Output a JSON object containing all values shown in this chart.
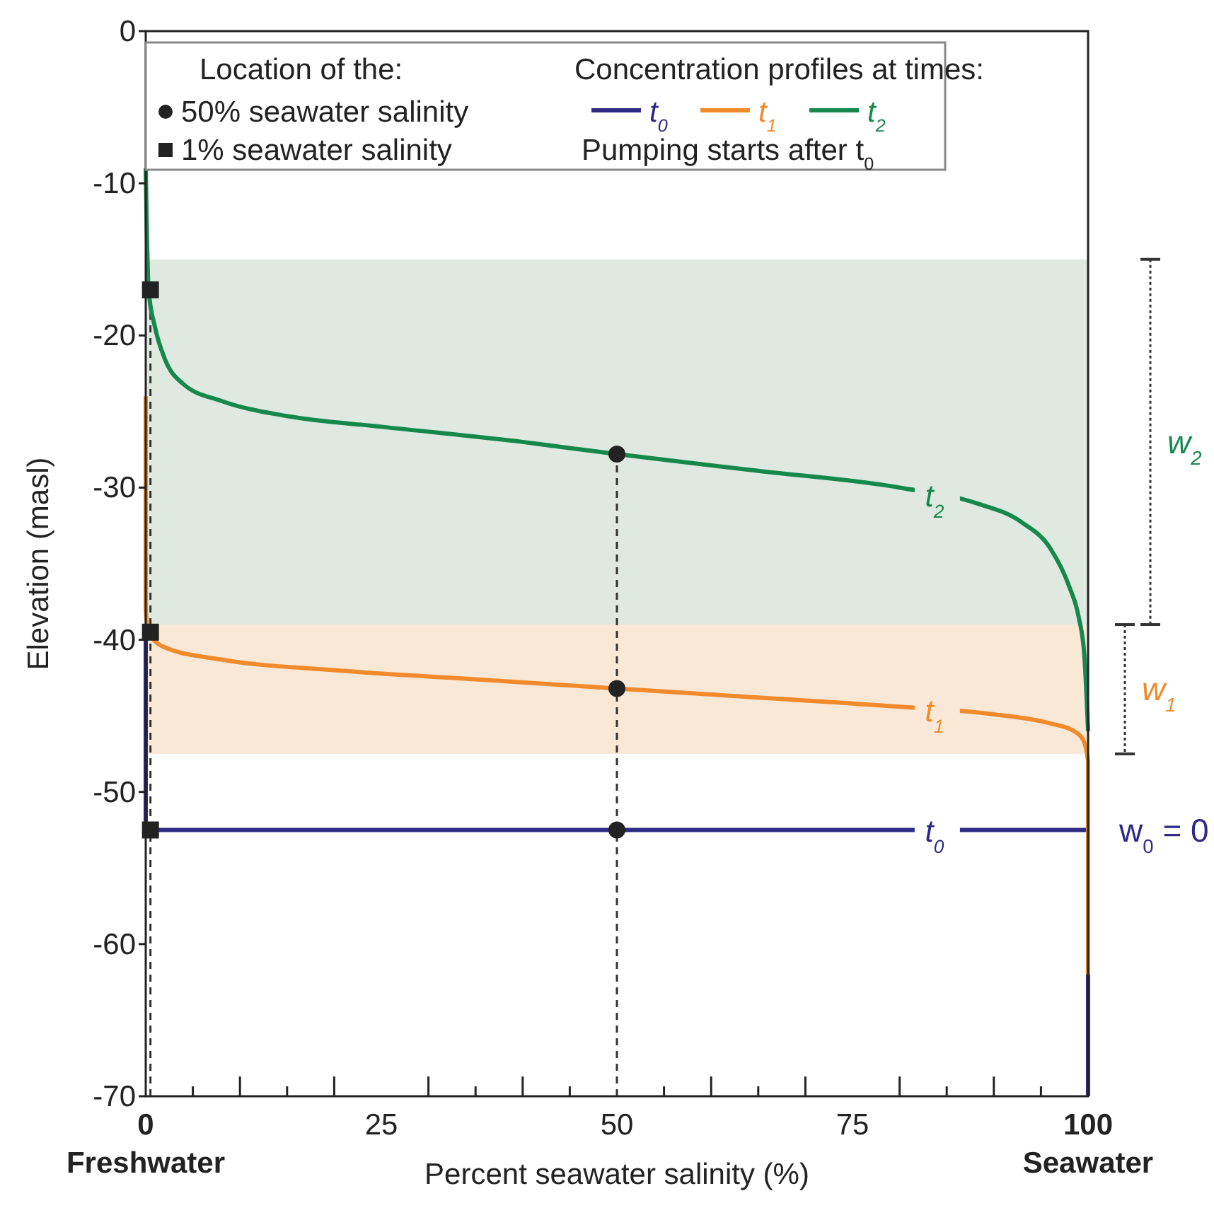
{
  "chart_data": {
    "type": "line",
    "xlabel": "Percent seawater salinity (%)",
    "ylabel": "Elevation (masl)",
    "xlim": [
      0,
      100
    ],
    "ylim": [
      -70,
      0
    ],
    "xticks": [
      0,
      {
        "value": 5,
        "label": null
      },
      {
        "value": 10,
        "label": null
      },
      {
        "value": 15,
        "label": null
      },
      {
        "value": 20,
        "label": null
      },
      25,
      {
        "value": 30,
        "label": null
      },
      {
        "value": 35,
        "label": null
      },
      {
        "value": 40,
        "label": null
      },
      {
        "value": 45,
        "label": null
      },
      50,
      {
        "value": 55,
        "label": null
      },
      {
        "value": 60,
        "label": null
      },
      {
        "value": 65,
        "label": null
      },
      {
        "value": 70,
        "label": null
      },
      75,
      {
        "value": 80,
        "label": null
      },
      {
        "value": 85,
        "label": null
      },
      {
        "value": 90,
        "label": null
      },
      {
        "value": 95,
        "label": null
      },
      100
    ],
    "yticks": [
      0,
      -10,
      -20,
      -30,
      -40,
      -50,
      -60,
      -70
    ],
    "grid": false,
    "legend": "top",
    "legend_title": "Location of the:",
    "marker": "none",
    "line_style": "solid",
    "series": [
      {
        "name": "t$_{0}$",
        "color": "#2e2a86",
        "x": [
          0,
          0,
          100,
          100
        ],
        "values": [
          -40,
          -52.5,
          -52.5,
          -70
        ]
      },
      {
        "name": "t$_{1}$",
        "color": "#f08a2a",
        "x": [
          0,
          0,
          0.3,
          2,
          8,
          20,
          35,
          50,
          65,
          80,
          90,
          96,
          98.5,
          99.5,
          100,
          100
        ],
        "values": [
          -24,
          -38,
          -39.5,
          -40.5,
          -41.3,
          -42,
          -42.6,
          -43.2,
          -43.8,
          -44.4,
          -44.9,
          -45.5,
          -46,
          -46.6,
          -48,
          -62
        ]
      },
      {
        "name": "t$_{2}$",
        "color": "#17884c",
        "x": [
          0,
          0.3,
          1,
          2,
          4,
          8,
          15,
          25,
          40,
          50,
          65,
          80,
          88,
          93,
          96,
          98,
          99,
          99.6,
          100
        ],
        "values": [
          -9,
          -17,
          -19.5,
          -21.5,
          -23.2,
          -24.3,
          -25.3,
          -26,
          -27,
          -27.8,
          -28.9,
          -30,
          -31,
          -32.3,
          -34,
          -36.5,
          -38.5,
          -41,
          -46
        ]
      },
      {
        "name": "50% seawater salinity",
        "type": "scatter",
        "marker": "circle",
        "color": "#222222",
        "x": [
          50,
          50,
          50
        ],
        "values": [
          -27.8,
          -43.2,
          -52.5
        ]
      },
      {
        "name": "1% seawater salinity",
        "type": "scatter",
        "marker": "square",
        "color": "#222222",
        "x": [
          0.5,
          0.5,
          0.5
        ],
        "values": [
          -17,
          -39.5,
          -52.5
        ]
      }
    ],
    "bands": [
      {
        "axis": "y",
        "from": -15,
        "to": -39,
        "label": "w$_{2}$",
        "color": "#dfe9df"
      },
      {
        "axis": "y",
        "from": -39,
        "to": -47.5,
        "label": "w$_{1}$",
        "color": "#f9e8d6"
      }
    ],
    "ref_lines": [
      {
        "axis": "x",
        "value": 0.5,
        "line_style": "dashed",
        "color": "#333333"
      },
      {
        "axis": "x",
        "value": 50,
        "line_style": "dashed",
        "color": "#333333"
      }
    ],
    "annotations": [
      "Concentration profiles at times:",
      "Pumping starts after t$_{0}$",
      "w$_{0}$ = 0",
      "Freshwater",
      "Seawater"
    ]
  }
}
